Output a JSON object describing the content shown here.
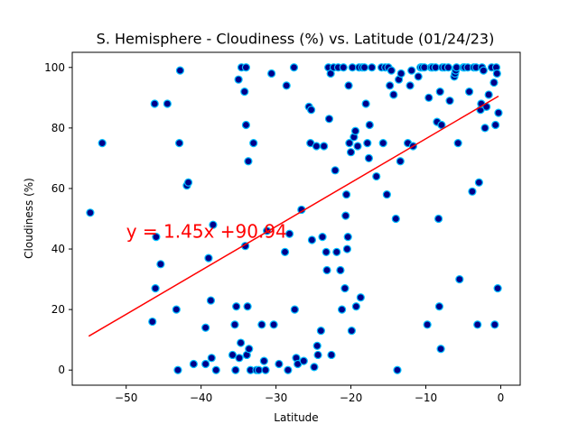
{
  "chart_data": {
    "type": "scatter",
    "title": "S. Hemisphere - Cloudiness (%) vs. Latitude (01/24/23)",
    "xlabel": "Latitude",
    "ylabel": "Cloudiness (%)",
    "xlim": [
      -57.2,
      2.6
    ],
    "ylim": [
      -5,
      105
    ],
    "xticks": [
      -50,
      -40,
      -30,
      -20,
      -10,
      0
    ],
    "yticks": [
      0,
      20,
      40,
      60,
      80,
      100
    ],
    "grid": false,
    "marker_fill": "#00008b",
    "marker_edge": "#00bfff",
    "regression": {
      "slope": 1.45,
      "intercept": 90.94,
      "x_range": [
        -55,
        -0.3
      ],
      "color": "#ff0000",
      "equation_label": "y = 1.45x +90.94",
      "label_color": "#ff0000",
      "label_x": -50,
      "label_y": 45
    },
    "points": [
      [
        -54.8,
        52
      ],
      [
        -53.2,
        75
      ],
      [
        -46.5,
        16
      ],
      [
        -46.2,
        88
      ],
      [
        -46.0,
        44
      ],
      [
        -46.1,
        27
      ],
      [
        -45.4,
        35
      ],
      [
        -44.5,
        88
      ],
      [
        -43.3,
        20
      ],
      [
        -43.1,
        0
      ],
      [
        -42.9,
        75
      ],
      [
        -42.8,
        99
      ],
      [
        -41.9,
        61
      ],
      [
        -41.7,
        62
      ],
      [
        -41.0,
        2
      ],
      [
        -39.4,
        14
      ],
      [
        -39.4,
        2
      ],
      [
        -39.0,
        37
      ],
      [
        -38.7,
        23
      ],
      [
        -38.6,
        4
      ],
      [
        -38.4,
        48
      ],
      [
        -38.0,
        0
      ],
      [
        -35.8,
        5
      ],
      [
        -35.5,
        15
      ],
      [
        -35.3,
        21
      ],
      [
        -35.4,
        0
      ],
      [
        -35.0,
        96
      ],
      [
        -34.9,
        4
      ],
      [
        -34.7,
        9
      ],
      [
        -34.6,
        100
      ],
      [
        -34.2,
        92
      ],
      [
        -34.0,
        100
      ],
      [
        -34.1,
        41
      ],
      [
        -34.0,
        81
      ],
      [
        -33.9,
        5
      ],
      [
        -33.7,
        69
      ],
      [
        -33.8,
        21
      ],
      [
        -33.6,
        7
      ],
      [
        -33.4,
        0
      ],
      [
        -33.0,
        75
      ],
      [
        -32.6,
        0
      ],
      [
        -32.3,
        0
      ],
      [
        -31.9,
        15
      ],
      [
        -31.6,
        3
      ],
      [
        -31.4,
        0
      ],
      [
        -31.2,
        46
      ],
      [
        -30.6,
        98
      ],
      [
        -30.3,
        15
      ],
      [
        -29.6,
        2
      ],
      [
        -28.8,
        39
      ],
      [
        -28.6,
        94
      ],
      [
        -28.4,
        0
      ],
      [
        -28.2,
        45
      ],
      [
        -27.6,
        100
      ],
      [
        -27.5,
        20
      ],
      [
        -27.3,
        4
      ],
      [
        -27.1,
        2
      ],
      [
        -26.6,
        53
      ],
      [
        -26.3,
        3
      ],
      [
        -25.6,
        87
      ],
      [
        -25.3,
        86
      ],
      [
        -25.2,
        43
      ],
      [
        -25.4,
        75
      ],
      [
        -24.9,
        1
      ],
      [
        -24.6,
        74
      ],
      [
        -24.5,
        8
      ],
      [
        -24.4,
        5
      ],
      [
        -24.0,
        13
      ],
      [
        -23.8,
        44
      ],
      [
        -23.6,
        74
      ],
      [
        -23.3,
        39
      ],
      [
        -23.2,
        33
      ],
      [
        -23.0,
        100
      ],
      [
        -22.9,
        83
      ],
      [
        -22.7,
        98
      ],
      [
        -22.6,
        5
      ],
      [
        -22.3,
        100
      ],
      [
        -22.1,
        66
      ],
      [
        -21.9,
        39
      ],
      [
        -21.7,
        100
      ],
      [
        -21.4,
        33
      ],
      [
        -21.2,
        20
      ],
      [
        -21.0,
        100
      ],
      [
        -20.8,
        27
      ],
      [
        -20.7,
        51
      ],
      [
        -20.6,
        58
      ],
      [
        -20.5,
        40
      ],
      [
        -20.4,
        44
      ],
      [
        -20.3,
        94
      ],
      [
        -20.2,
        75
      ],
      [
        -20.0,
        72
      ],
      [
        -19.9,
        13
      ],
      [
        -19.8,
        100
      ],
      [
        -19.6,
        77
      ],
      [
        -19.4,
        79
      ],
      [
        -19.3,
        21
      ],
      [
        -19.1,
        74
      ],
      [
        -18.9,
        100
      ],
      [
        -18.7,
        24
      ],
      [
        -18.5,
        100
      ],
      [
        -18.2,
        100
      ],
      [
        -18.0,
        88
      ],
      [
        -17.8,
        75
      ],
      [
        -17.6,
        70
      ],
      [
        -17.5,
        81
      ],
      [
        -17.2,
        100
      ],
      [
        -16.6,
        64
      ],
      [
        -15.9,
        100
      ],
      [
        -15.7,
        75
      ],
      [
        -15.4,
        100
      ],
      [
        -15.2,
        58
      ],
      [
        -15.0,
        100
      ],
      [
        -14.8,
        94
      ],
      [
        -14.6,
        99
      ],
      [
        -14.3,
        91
      ],
      [
        -14.0,
        50
      ],
      [
        -13.8,
        0
      ],
      [
        -13.6,
        96
      ],
      [
        -13.4,
        69
      ],
      [
        -13.3,
        98
      ],
      [
        -12.4,
        75
      ],
      [
        -12.1,
        94
      ],
      [
        -11.9,
        99
      ],
      [
        -11.7,
        74
      ],
      [
        -11.0,
        97
      ],
      [
        -10.7,
        100
      ],
      [
        -10.5,
        100
      ],
      [
        -10.2,
        100
      ],
      [
        -9.8,
        15
      ],
      [
        -9.6,
        90
      ],
      [
        -9.3,
        100
      ],
      [
        -9.1,
        100
      ],
      [
        -8.7,
        100
      ],
      [
        -8.5,
        82
      ],
      [
        -8.3,
        50
      ],
      [
        -8.2,
        21
      ],
      [
        -8.1,
        92
      ],
      [
        -8.0,
        7
      ],
      [
        -7.9,
        81
      ],
      [
        -7.8,
        100
      ],
      [
        -7.5,
        100
      ],
      [
        -7.0,
        100
      ],
      [
        -6.8,
        89
      ],
      [
        -6.2,
        97
      ],
      [
        -6.1,
        98
      ],
      [
        -6.0,
        99
      ],
      [
        -5.9,
        100
      ],
      [
        -5.7,
        75
      ],
      [
        -5.5,
        30
      ],
      [
        -5.0,
        100
      ],
      [
        -4.8,
        100
      ],
      [
        -4.4,
        100
      ],
      [
        -4.2,
        92
      ],
      [
        -3.8,
        59
      ],
      [
        -3.6,
        100
      ],
      [
        -3.3,
        100
      ],
      [
        -3.1,
        15
      ],
      [
        -2.9,
        62
      ],
      [
        -2.7,
        86
      ],
      [
        -2.6,
        88
      ],
      [
        -2.5,
        100
      ],
      [
        -2.3,
        99
      ],
      [
        -2.1,
        80
      ],
      [
        -1.9,
        87
      ],
      [
        -1.6,
        91
      ],
      [
        -1.2,
        100
      ],
      [
        -0.9,
        95
      ],
      [
        -0.8,
        15
      ],
      [
        -0.7,
        81
      ],
      [
        -0.6,
        100
      ],
      [
        -0.5,
        98
      ],
      [
        -0.4,
        27
      ],
      [
        -0.3,
        85
      ]
    ]
  }
}
